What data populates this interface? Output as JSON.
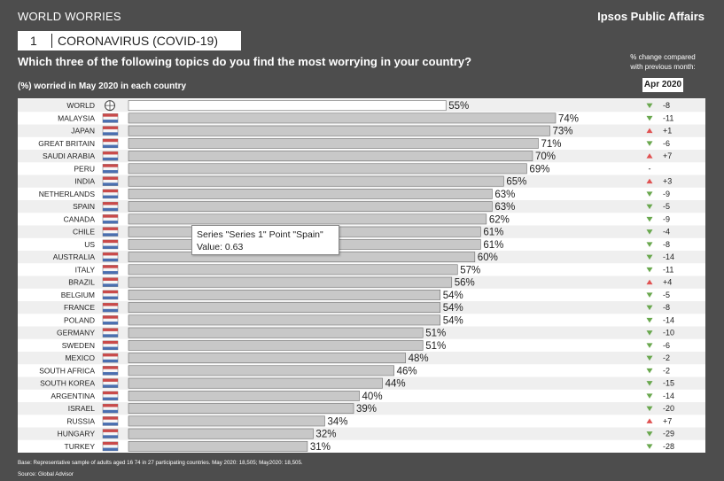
{
  "header": {
    "series_name": "WORLD WORRIES",
    "brand": "Ipsos Public Affairs",
    "topic_number": "1",
    "topic_label": "CORONAVIRUS (COVID-19)",
    "question": "Which three of the following topics do you find the most worrying in your country?",
    "subtitle": "(%) worried in May 2020 in each country",
    "change_header": [
      "% change compared",
      "with previous month:"
    ],
    "comparison_month": "Apr 2020"
  },
  "chart_data": {
    "type": "bar",
    "orientation": "horizontal",
    "categories": [
      "WORLD",
      "MALAYSIA",
      "JAPAN",
      "GREAT BRITAIN",
      "SAUDI ARABIA",
      "PERU",
      "INDIA",
      "NETHERLANDS",
      "SPAIN",
      "CANADA",
      "CHILE",
      "US",
      "AUSTRALIA",
      "ITALY",
      "BRAZIL",
      "BELGIUM",
      "FRANCE",
      "POLAND",
      "GERMANY",
      "SWEDEN",
      "MEXICO",
      "SOUTH AFRICA",
      "SOUTH KOREA",
      "ARGENTINA",
      "ISRAEL",
      "RUSSIA",
      "HUNGARY",
      "TURKEY"
    ],
    "values": [
      55,
      74,
      73,
      71,
      70,
      69,
      65,
      63,
      63,
      62,
      61,
      61,
      60,
      57,
      56,
      54,
      54,
      54,
      51,
      51,
      48,
      46,
      44,
      40,
      39,
      34,
      32,
      31
    ],
    "value_labels": [
      "55%",
      "74%",
      "73%",
      "71%",
      "70%",
      "69%",
      "65%",
      "63%",
      "63%",
      "62%",
      "61%",
      "61%",
      "60%",
      "57%",
      "56%",
      "54%",
      "54%",
      "54%",
      "51%",
      "51%",
      "48%",
      "46%",
      "44%",
      "40%",
      "39%",
      "34%",
      "32%",
      "31%"
    ],
    "change": [
      "-8",
      "-11",
      "+1",
      "-6",
      "+7",
      "-",
      "+3",
      "-9",
      "-5",
      "-9",
      "-4",
      "-8",
      "-14",
      "-11",
      "+4",
      "-5",
      "-8",
      "-14",
      "-10",
      "-6",
      "-2",
      "-2",
      "-15",
      "-14",
      "-20",
      "+7",
      "-29",
      "-28"
    ],
    "change_direction": [
      "down",
      "down",
      "up",
      "down",
      "up",
      "none",
      "up",
      "down",
      "down",
      "down",
      "down",
      "down",
      "down",
      "down",
      "up",
      "down",
      "down",
      "down",
      "down",
      "down",
      "down",
      "down",
      "down",
      "down",
      "down",
      "up",
      "down",
      "down"
    ],
    "xlim": [
      0,
      100
    ],
    "colors": {
      "bar": "#c8c8c8",
      "bar_highlight": "#ffffff",
      "bar_border": "#6e6e6e",
      "up": "#e05252",
      "down": "#6aa84f",
      "stripe": "#efefef"
    }
  },
  "tooltip": {
    "line1": "Series \"Series 1\" Point \"Spain\"",
    "line2": "Value: 0.63"
  },
  "footer": {
    "base": "Base: Representative sample of adults aged 16 74 in 27 participating countries. May 2020: 18,505; May2020: 18,505.",
    "source": "Source: Global Advisor"
  }
}
